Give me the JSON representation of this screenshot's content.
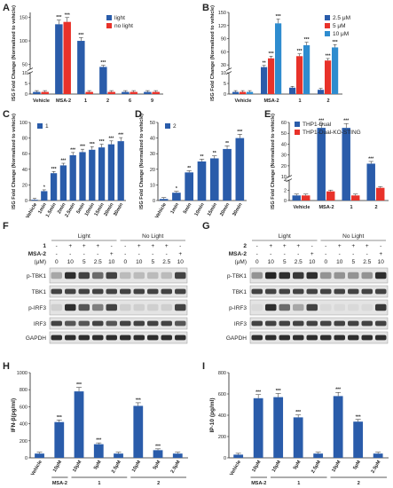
{
  "colors": {
    "blue": "#2a5caa",
    "red": "#e8322a",
    "lightblue": "#2e8ccf",
    "band": "#1a1a1a"
  },
  "panels": {
    "A": "A",
    "B": "B",
    "C": "C",
    "D": "D",
    "E": "E",
    "F": "F",
    "G": "G",
    "H": "H",
    "I": "I"
  },
  "chart_data": [
    {
      "id": "A",
      "type": "bar",
      "ylabel": "ISG Fold Change (Normalized to vehicle)",
      "categories": [
        "Vehicle",
        "MSA-2",
        "1",
        "2",
        "6",
        "9"
      ],
      "series": [
        {
          "name": "light",
          "color": "#2a5caa",
          "values": [
            1,
            135,
            100,
            45,
            1,
            1
          ]
        },
        {
          "name": "no light",
          "color": "#e8322a",
          "values": [
            1,
            140,
            1,
            1,
            1,
            1
          ]
        }
      ],
      "stars": [
        [
          "",
          "***",
          "***",
          "***",
          "",
          ""
        ],
        [
          "",
          "***",
          "",
          "",
          "",
          ""
        ]
      ],
      "broken_axis": {
        "lower": [
          0,
          10
        ],
        "upper": [
          40,
          160
        ],
        "lower_ticks": [
          0,
          5,
          10
        ],
        "upper_ticks": [
          50,
          100,
          150
        ]
      },
      "legend": "top-right"
    },
    {
      "id": "B",
      "type": "bar",
      "ylabel": "ISG Fold Change (Normalized to vehicle)",
      "categories": [
        "Vehicle",
        "MSA-2",
        "1",
        "2"
      ],
      "series": [
        {
          "name": "2.5 μM",
          "color": "#2a5caa",
          "values": [
            1,
            25,
            3,
            2
          ]
        },
        {
          "name": "5 μM",
          "color": "#e8322a",
          "values": [
            1,
            45,
            50,
            40
          ]
        },
        {
          "name": "10 μM",
          "color": "#2e8ccf",
          "values": [
            1,
            125,
            75,
            70
          ]
        }
      ],
      "stars": [
        [
          "",
          "**",
          "",
          ""
        ],
        [
          "",
          "***",
          "***",
          "***"
        ],
        [
          "",
          "***",
          "***",
          "***"
        ]
      ],
      "broken_axis": {
        "lower": [
          0,
          10
        ],
        "upper": [
          20,
          150
        ],
        "lower_ticks": [
          0,
          5,
          10
        ],
        "upper_ticks": [
          30,
          60,
          90,
          120,
          150
        ]
      },
      "legend": "top-right"
    },
    {
      "id": "C",
      "type": "bar",
      "ylabel": "ISG Fold Change (Normalized to vehicle)",
      "categories": [
        "Vehicle",
        "1min",
        "1.5min",
        "2min",
        "2.5min",
        "5min",
        "10min",
        "15min",
        "20min",
        "30min"
      ],
      "series": [
        {
          "name": "1",
          "color": "#2a5caa",
          "values": [
            1,
            12,
            35,
            45,
            58,
            62,
            65,
            68,
            72,
            76
          ]
        }
      ],
      "stars": [
        [
          "",
          "*",
          "***",
          "***",
          "***",
          "***",
          "***",
          "***",
          "***",
          "***"
        ]
      ],
      "ylim": [
        0,
        100
      ],
      "yticks": [
        0,
        20,
        40,
        60,
        80,
        100
      ],
      "legend": "top-left"
    },
    {
      "id": "D",
      "type": "bar",
      "ylabel": "ISG Fold Change (Normalized to vehicle)",
      "categories": [
        "Vehicle",
        "1min",
        "5min",
        "10min",
        "15min",
        "20min",
        "30min"
      ],
      "series": [
        {
          "name": "2",
          "color": "#2a5caa",
          "values": [
            1,
            5,
            18,
            25,
            27,
            33,
            40
          ]
        }
      ],
      "stars": [
        [
          "",
          "*",
          "**",
          "**",
          "**",
          "**",
          "***"
        ]
      ],
      "ylim": [
        0,
        50
      ],
      "yticks": [
        0,
        10,
        20,
        30,
        40,
        50
      ],
      "legend": "top-left"
    },
    {
      "id": "E",
      "type": "bar",
      "ylabel": "ISG Fold Change (Normalized to vehicle)",
      "categories": [
        "Vehicle",
        "MSA-2",
        "1",
        "2"
      ],
      "series": [
        {
          "name": "THP1-Dual",
          "color": "#2a5caa",
          "values": [
            1,
            55,
            55,
            22
          ]
        },
        {
          "name": "THP1-Dual-KO-STING",
          "color": "#e8322a",
          "values": [
            1,
            1.8,
            1,
            2.5
          ]
        }
      ],
      "stars": [
        [
          "",
          "***",
          "***",
          "***"
        ],
        [
          "",
          "",
          "",
          ""
        ]
      ],
      "broken_axis": {
        "lower": [
          0,
          4
        ],
        "upper": [
          10,
          60
        ],
        "lower_ticks": [
          0,
          2,
          4
        ],
        "upper_ticks": [
          10,
          20,
          30,
          40,
          50,
          60
        ]
      },
      "legend": "top-left"
    },
    {
      "id": "H",
      "type": "bar",
      "ylabel": "IFN-β(pg/ml)",
      "categories": [
        "Vehicle",
        "10μM",
        "10μM",
        "5μM",
        "2.5μM",
        "10μM",
        "5μM",
        "2.5μM"
      ],
      "groups": [
        "MSA-2",
        "1",
        "2"
      ],
      "series": [
        {
          "name": "",
          "color": "#2a5caa",
          "values": [
            50,
            420,
            780,
            160,
            50,
            610,
            90,
            50
          ]
        }
      ],
      "stars": [
        [
          "",
          "***",
          "***",
          "***",
          "",
          "***",
          "***",
          ""
        ]
      ],
      "ylim": [
        0,
        1000
      ],
      "yticks": [
        0,
        200,
        400,
        600,
        800,
        1000
      ]
    },
    {
      "id": "I",
      "type": "bar",
      "ylabel": "IP-10 (pg/ml)",
      "categories": [
        "Vehicle",
        "10μM",
        "10μM",
        "5μM",
        "2.5μM",
        "10μM",
        "5μM",
        "2.5μM"
      ],
      "groups": [
        "MSA-2",
        "1",
        "2"
      ],
      "series": [
        {
          "name": "",
          "color": "#2a5caa",
          "values": [
            30,
            560,
            570,
            380,
            40,
            580,
            340,
            40
          ]
        }
      ],
      "stars": [
        [
          "",
          "***",
          "***",
          "***",
          "",
          "***",
          "***",
          ""
        ]
      ],
      "ylim": [
        0,
        800
      ],
      "yticks": [
        0,
        200,
        400,
        600,
        800
      ]
    }
  ],
  "blots": {
    "F": {
      "compound": "1",
      "msa": "MSA-2",
      "conc_label": "(μM)",
      "cond_light": "Light",
      "cond_nolight": "No Light",
      "compound_row": [
        "-",
        "+",
        "+",
        "+",
        "-",
        "-",
        "+",
        "+",
        "+",
        "-"
      ],
      "msa_row": [
        "-",
        "-",
        "-",
        "-",
        "+",
        "-",
        "-",
        "-",
        "-",
        "+"
      ],
      "conc_row": [
        "0",
        "10",
        "5",
        "2.5",
        "10",
        "0",
        "10",
        "5",
        "2.5",
        "10"
      ],
      "rows": [
        "p-TBK1",
        "TBK1",
        "p-IRF3",
        "IRF3",
        "GAPDH"
      ],
      "intensity": [
        [
          0.3,
          0.9,
          0.8,
          0.6,
          0.8,
          0.2,
          0.2,
          0.2,
          0.2,
          0.8
        ],
        [
          0.8,
          0.8,
          0.8,
          0.8,
          0.8,
          0.8,
          0.8,
          0.8,
          0.8,
          0.8
        ],
        [
          0.1,
          0.9,
          0.7,
          0.5,
          0.8,
          0.1,
          0.1,
          0.1,
          0.1,
          0.8
        ],
        [
          0.8,
          0.7,
          0.7,
          0.8,
          0.7,
          0.8,
          0.8,
          0.8,
          0.8,
          0.7
        ],
        [
          0.9,
          0.9,
          0.9,
          0.9,
          0.9,
          0.9,
          0.9,
          0.9,
          0.9,
          0.9
        ]
      ]
    },
    "G": {
      "compound": "2",
      "msa": "MSA-2",
      "conc_label": "(μM)",
      "cond_light": "Light",
      "cond_nolight": "No Light",
      "compound_row": [
        "-",
        "+",
        "+",
        "+",
        "-",
        "-",
        "+",
        "+",
        "+",
        "-"
      ],
      "msa_row": [
        "-",
        "-",
        "-",
        "-",
        "+",
        "-",
        "-",
        "-",
        "-",
        "+"
      ],
      "conc_row": [
        "0",
        "10",
        "5",
        "2.5",
        "10",
        "0",
        "10",
        "5",
        "2.5",
        "10"
      ],
      "rows": [
        "p-TBK1",
        "TBK1",
        "p-IRF3",
        "IRF3",
        "GAPDH"
      ],
      "intensity": [
        [
          0.4,
          0.95,
          0.9,
          0.85,
          0.9,
          0.4,
          0.4,
          0.4,
          0.4,
          0.9
        ],
        [
          0.8,
          0.8,
          0.8,
          0.8,
          0.8,
          0.8,
          0.8,
          0.8,
          0.8,
          0.8
        ],
        [
          0.05,
          0.9,
          0.6,
          0.3,
          0.8,
          0.05,
          0.05,
          0.05,
          0.05,
          0.85
        ],
        [
          0.8,
          0.8,
          0.8,
          0.8,
          0.8,
          0.8,
          0.8,
          0.8,
          0.8,
          0.8
        ],
        [
          0.9,
          0.9,
          0.9,
          0.9,
          0.9,
          0.9,
          0.9,
          0.9,
          0.9,
          0.9
        ]
      ]
    }
  }
}
